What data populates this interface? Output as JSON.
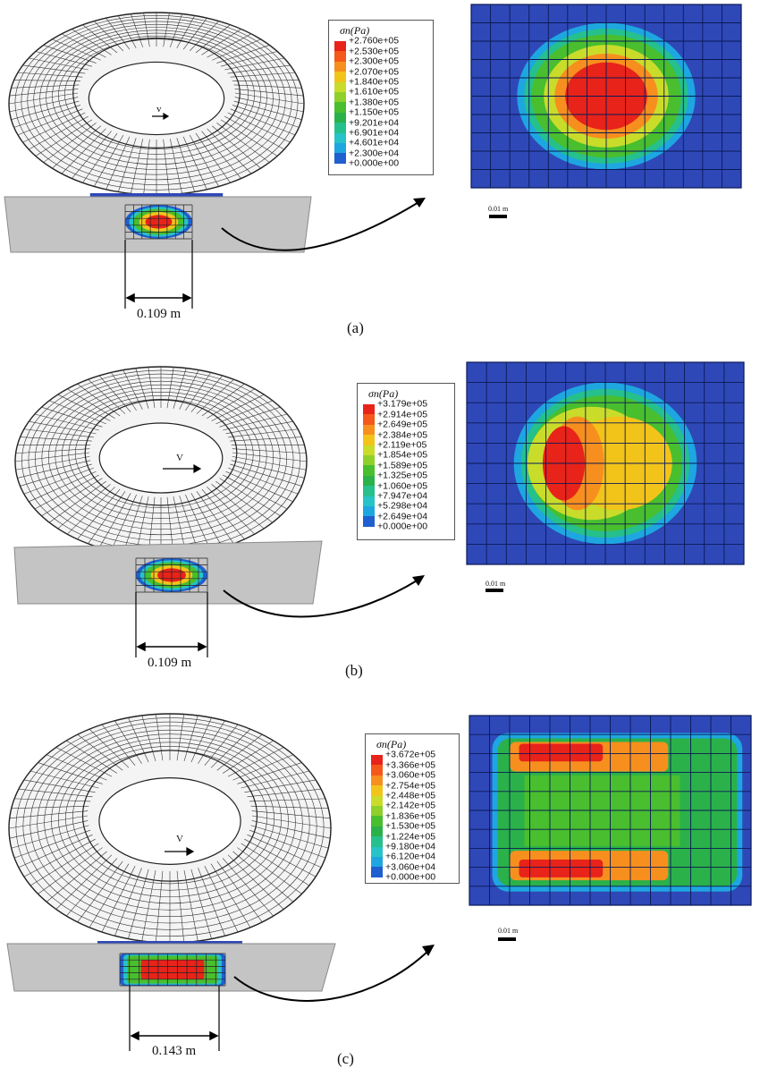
{
  "panels": [
    {
      "id": "a",
      "caption": "(a)",
      "contact_width_label": "0.109 m",
      "scale_label": "0.01 m",
      "velocity_label": "v",
      "legend": {
        "title": "σn(Pa)",
        "ticks": [
          "+2.760e+05",
          "+2.530e+05",
          "+2.300e+05",
          "+2.070e+05",
          "+1.840e+05",
          "+1.610e+05",
          "+1.380e+05",
          "+1.150e+05",
          "+9.201e+04",
          "+6.901e+04",
          "+4.601e+04",
          "+2.300e+04",
          "+0.000e+00"
        ]
      }
    },
    {
      "id": "b",
      "caption": "(b)",
      "contact_width_label": "0.109 m",
      "scale_label": "0.01 m",
      "velocity_label": "V",
      "legend": {
        "title": "σn(Pa)",
        "ticks": [
          "+3.179e+05",
          "+2.914e+05",
          "+2.649e+05",
          "+2.384e+05",
          "+2.119e+05",
          "+1.854e+05",
          "+1.589e+05",
          "+1.325e+05",
          "+1.060e+05",
          "+7.947e+04",
          "+5.298e+04",
          "+2.649e+04",
          "+0.000e+00"
        ]
      }
    },
    {
      "id": "c",
      "caption": "(c)",
      "contact_width_label": "0.143 m",
      "scale_label": "0.01 m",
      "velocity_label": "V",
      "legend": {
        "title": "σn(Pa)",
        "ticks": [
          "+3.672e+05",
          "+3.366e+05",
          "+3.060e+05",
          "+2.754e+05",
          "+2.448e+05",
          "+2.142e+05",
          "+1.836e+05",
          "+1.530e+05",
          "+1.224e+05",
          "+9.180e+04",
          "+6.120e+04",
          "+3.060e+04",
          "+0.000e+00"
        ]
      }
    }
  ],
  "colors": {
    "contour_scale": [
      "#e8231a",
      "#f4581a",
      "#f78f1e",
      "#f2c41a",
      "#c9dc2a",
      "#8fd02b",
      "#49be2f",
      "#2bb14a",
      "#26c08c",
      "#26c3c8",
      "#1ea6e0",
      "#1f5fcf"
    ],
    "mesh_base": "#2f48b8",
    "ground": "#c4c4c4"
  }
}
